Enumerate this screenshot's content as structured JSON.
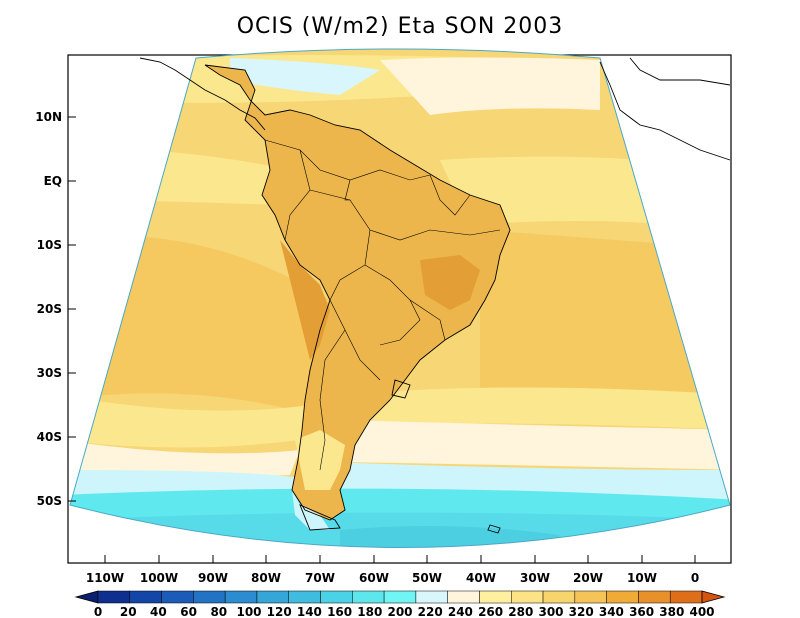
{
  "title": "OCIS (W/m2) Eta SON 2003",
  "y_axis": {
    "labels": [
      "10N",
      "EQ",
      "10S",
      "20S",
      "30S",
      "40S",
      "50S"
    ]
  },
  "x_axis": {
    "labels": [
      "110W",
      "100W",
      "90W",
      "80W",
      "70W",
      "60W",
      "50W",
      "40W",
      "30W",
      "20W",
      "10W",
      "0"
    ]
  },
  "colorbar": {
    "labels": [
      "0",
      "20",
      "40",
      "60",
      "80",
      "100",
      "120",
      "140",
      "160",
      "180",
      "200",
      "220",
      "240",
      "260",
      "280",
      "300",
      "320",
      "340",
      "360",
      "380",
      "400"
    ],
    "colors": [
      "#0a1f6e",
      "#0f2f8f",
      "#1446a8",
      "#1a5cb8",
      "#2273c4",
      "#2b8ccf",
      "#36a5d8",
      "#40bce0",
      "#4cd2e6",
      "#5de6ec",
      "#70f4f4",
      "#d8f6fb",
      "#fff4dc",
      "#fff0a0",
      "#fce486",
      "#f8d46c",
      "#f4c458",
      "#efaa38",
      "#e8902a",
      "#df6e1a",
      "#d55410"
    ]
  },
  "colors": {
    "land_dark": "#ecb64c",
    "ocean_mid": "#f6d274",
    "ocean_light": "#fbe88e",
    "pale": "#fff4dc",
    "cyan": "#5fe9ef",
    "light_cyan": "#cdf5fb"
  }
}
